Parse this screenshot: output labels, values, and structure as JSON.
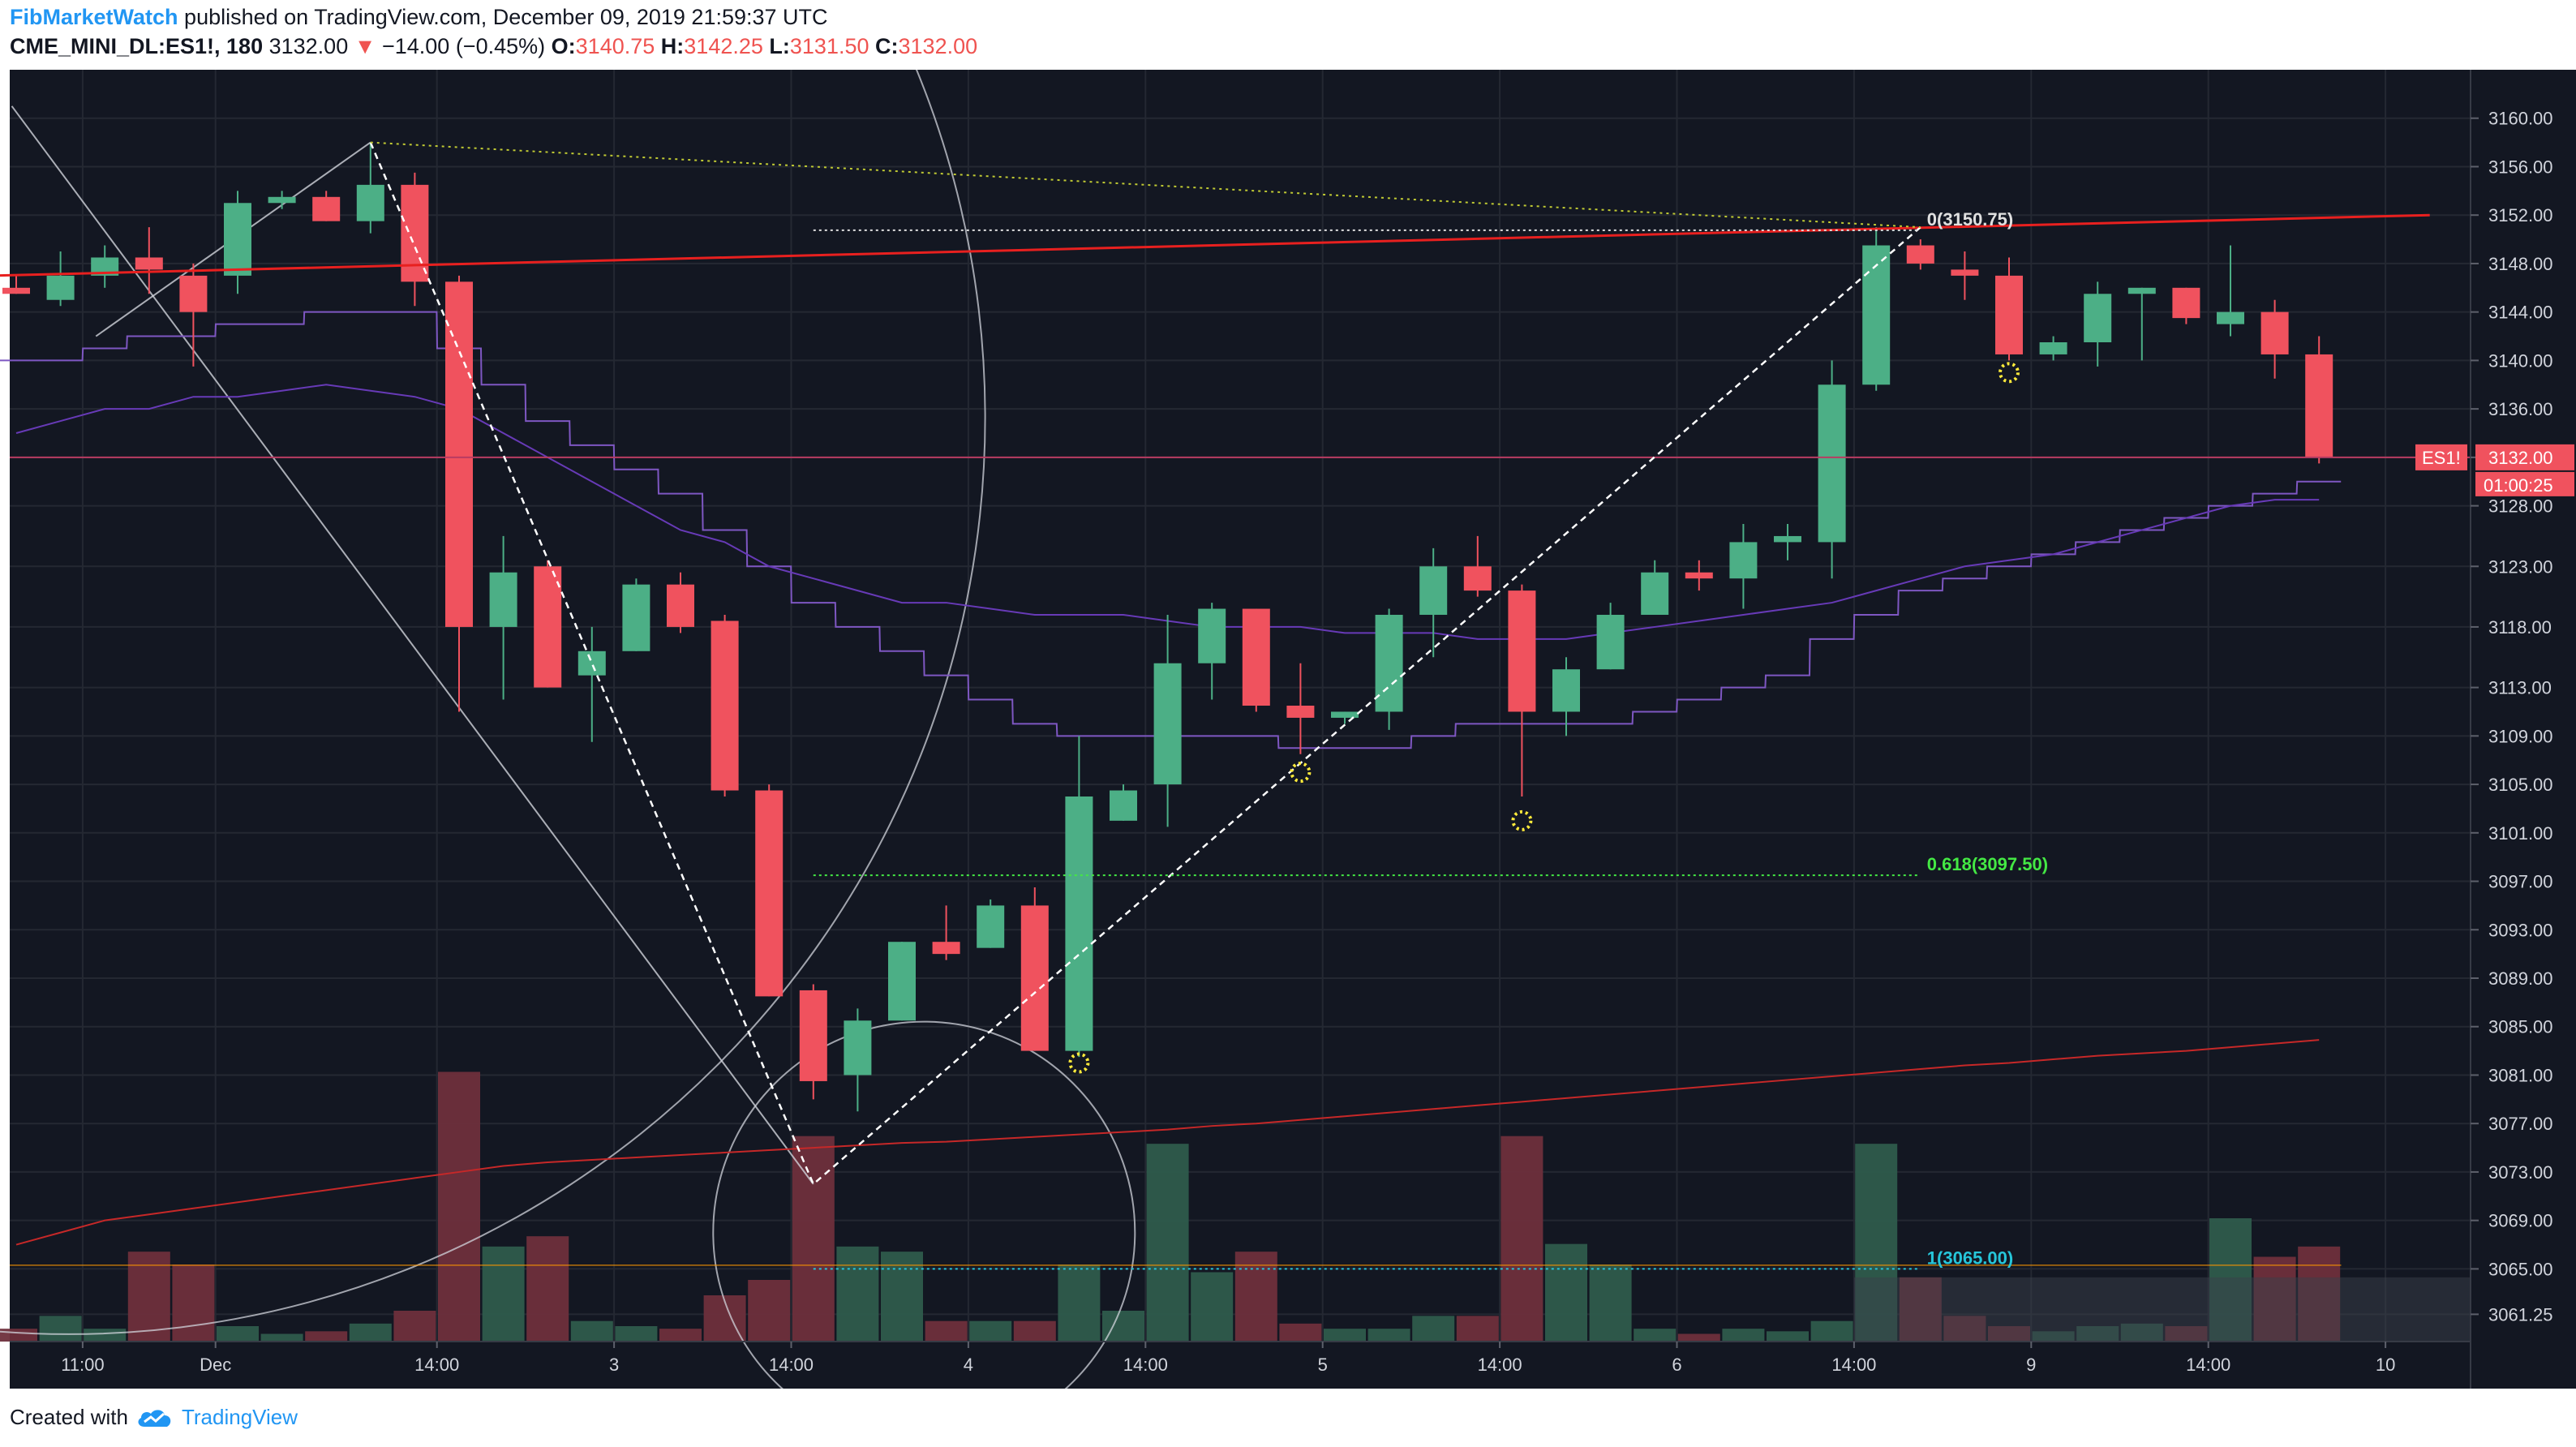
{
  "header": {
    "author": "FibMarketWatch",
    "published_text": "published on TradingView.com, December 09, 2019 21:59:37 UTC",
    "symbol": "CME_MINI_DL:ES1!, 180",
    "last": "3132.00",
    "change": "−14.00 (−0.45%)",
    "o_label": "O:",
    "o_val": "3140.75",
    "h_label": "H:",
    "h_val": "3142.25",
    "l_label": "L:",
    "l_val": "3131.50",
    "c_label": "C:",
    "c_val": "3132.00"
  },
  "footer": {
    "created_with": "Created with",
    "brand": "TradingView"
  },
  "colors": {
    "up": "#4caf86",
    "down": "#f0525e",
    "bg": "#131722",
    "grid": "#242832",
    "axis_text": "#d1d4dc",
    "resistance": "#e8201f",
    "fib_green": "#44e844",
    "fib_cyan": "#26c6da"
  },
  "chart_data": {
    "type": "candlestick",
    "symbol": "ES1!",
    "interval": "180",
    "ylim": [
      3059,
      3164
    ],
    "y_ticks": [
      3061.25,
      3065.0,
      3069.0,
      3073.0,
      3077.0,
      3081.0,
      3085.0,
      3089.0,
      3093.0,
      3097.0,
      3101.0,
      3105.0,
      3109.0,
      3113.0,
      3118.0,
      3123.0,
      3128.0,
      3132.0,
      3136.0,
      3140.0,
      3144.0,
      3148.0,
      3152.0,
      3156.0,
      3160.0
    ],
    "x_labels": [
      {
        "i": 1.5,
        "label": "11:00"
      },
      {
        "i": 4.5,
        "label": "Dec"
      },
      {
        "i": 9.5,
        "label": "14:00"
      },
      {
        "i": 13.5,
        "label": "3"
      },
      {
        "i": 17.5,
        "label": "14:00"
      },
      {
        "i": 21.5,
        "label": "4"
      },
      {
        "i": 25.5,
        "label": "14:00"
      },
      {
        "i": 29.5,
        "label": "5"
      },
      {
        "i": 33.5,
        "label": "14:00"
      },
      {
        "i": 37.5,
        "label": "6"
      },
      {
        "i": 41.5,
        "label": "14:00"
      },
      {
        "i": 45.5,
        "label": "9"
      },
      {
        "i": 49.5,
        "label": "14:00"
      },
      {
        "i": 53.5,
        "label": "10"
      }
    ],
    "candles": [
      {
        "o": 3146.0,
        "h": 3147.0,
        "l": 3145.5,
        "c": 3145.5,
        "v": 5
      },
      {
        "o": 3145.0,
        "h": 3149.0,
        "l": 3144.5,
        "c": 3147.0,
        "v": 10
      },
      {
        "o": 3147.0,
        "h": 3149.5,
        "l": 3146.0,
        "c": 3148.5,
        "v": 5
      },
      {
        "o": 3148.5,
        "h": 3151.0,
        "l": 3145.5,
        "c": 3147.5,
        "v": 35
      },
      {
        "o": 3147.0,
        "h": 3148.0,
        "l": 3139.5,
        "c": 3144.0,
        "v": 30
      },
      {
        "o": 3147.0,
        "h": 3154.0,
        "l": 3145.5,
        "c": 3153.0,
        "v": 6
      },
      {
        "o": 3153.0,
        "h": 3154.0,
        "l": 3152.5,
        "c": 3153.5,
        "v": 3
      },
      {
        "o": 3153.5,
        "h": 3154.0,
        "l": 3151.5,
        "c": 3151.5,
        "v": 4
      },
      {
        "o": 3151.5,
        "h": 3158.0,
        "l": 3150.5,
        "c": 3154.5,
        "v": 7
      },
      {
        "o": 3154.5,
        "h": 3155.5,
        "l": 3144.5,
        "c": 3146.5,
        "v": 12
      },
      {
        "o": 3146.5,
        "h": 3147.0,
        "l": 3111.0,
        "c": 3118.0,
        "v": 105
      },
      {
        "o": 3118.0,
        "h": 3125.5,
        "l": 3112.0,
        "c": 3122.5,
        "v": 37
      },
      {
        "o": 3123.0,
        "h": 3123.5,
        "l": 3113.0,
        "c": 3113.0,
        "v": 41
      },
      {
        "o": 3114.0,
        "h": 3118.0,
        "l": 3108.5,
        "c": 3116.0,
        "v": 8
      },
      {
        "o": 3116.0,
        "h": 3122.0,
        "l": 3116.0,
        "c": 3121.5,
        "v": 6
      },
      {
        "o": 3121.5,
        "h": 3122.5,
        "l": 3117.5,
        "c": 3118.0,
        "v": 5
      },
      {
        "o": 3118.5,
        "h": 3119.0,
        "l": 3104.0,
        "c": 3104.5,
        "v": 18
      },
      {
        "o": 3104.5,
        "h": 3105.0,
        "l": 3087.5,
        "c": 3087.5,
        "v": 24
      },
      {
        "o": 3088.0,
        "h": 3088.5,
        "l": 3079.0,
        "c": 3080.5,
        "v": 80
      },
      {
        "o": 3081.0,
        "h": 3086.5,
        "l": 3078.0,
        "c": 3085.5,
        "v": 37
      },
      {
        "o": 3085.5,
        "h": 3092.0,
        "l": 3085.5,
        "c": 3092.0,
        "v": 35
      },
      {
        "o": 3092.0,
        "h": 3095.0,
        "l": 3090.5,
        "c": 3091.0,
        "v": 8
      },
      {
        "o": 3091.5,
        "h": 3095.5,
        "l": 3091.5,
        "c": 3095.0,
        "v": 8
      },
      {
        "o": 3095.0,
        "h": 3096.5,
        "l": 3083.0,
        "c": 3083.0,
        "v": 8
      },
      {
        "o": 3083.0,
        "h": 3109.0,
        "l": 3082.5,
        "c": 3104.0,
        "v": 30
      },
      {
        "o": 3102.0,
        "h": 3105.0,
        "l": 3102.0,
        "c": 3104.5,
        "v": 12
      },
      {
        "o": 3105.0,
        "h": 3119.0,
        "l": 3101.5,
        "c": 3115.0,
        "v": 77
      },
      {
        "o": 3115.0,
        "h": 3120.0,
        "l": 3112.0,
        "c": 3119.5,
        "v": 27
      },
      {
        "o": 3119.5,
        "h": 3119.5,
        "l": 3111.0,
        "c": 3111.5,
        "v": 35
      },
      {
        "o": 3111.5,
        "h": 3115.0,
        "l": 3107.5,
        "c": 3110.5,
        "v": 7
      },
      {
        "o": 3110.5,
        "h": 3111.0,
        "l": 3110.0,
        "c": 3111.0,
        "v": 5
      },
      {
        "o": 3111.0,
        "h": 3119.5,
        "l": 3109.5,
        "c": 3119.0,
        "v": 5
      },
      {
        "o": 3119.0,
        "h": 3124.5,
        "l": 3115.5,
        "c": 3123.0,
        "v": 10
      },
      {
        "o": 3123.0,
        "h": 3125.5,
        "l": 3120.5,
        "c": 3121.0,
        "v": 10
      },
      {
        "o": 3121.0,
        "h": 3121.5,
        "l": 3104.0,
        "c": 3111.0,
        "v": 80
      },
      {
        "o": 3111.0,
        "h": 3115.5,
        "l": 3109.0,
        "c": 3114.5,
        "v": 38
      },
      {
        "o": 3114.5,
        "h": 3120.0,
        "l": 3114.5,
        "c": 3119.0,
        "v": 30
      },
      {
        "o": 3119.0,
        "h": 3123.5,
        "l": 3119.0,
        "c": 3122.5,
        "v": 5
      },
      {
        "o": 3122.5,
        "h": 3123.5,
        "l": 3121.0,
        "c": 3122.0,
        "v": 3
      },
      {
        "o": 3122.0,
        "h": 3126.5,
        "l": 3119.5,
        "c": 3125.0,
        "v": 5
      },
      {
        "o": 3125.0,
        "h": 3126.5,
        "l": 3123.5,
        "c": 3125.5,
        "v": 4
      },
      {
        "o": 3125.0,
        "h": 3140.0,
        "l": 3122.0,
        "c": 3138.0,
        "v": 8
      },
      {
        "o": 3138.0,
        "h": 3151.0,
        "l": 3137.5,
        "c": 3149.5,
        "v": 77
      },
      {
        "o": 3149.5,
        "h": 3150.0,
        "l": 3147.5,
        "c": 3148.0,
        "v": 25
      },
      {
        "o": 3147.5,
        "h": 3149.0,
        "l": 3145.0,
        "c": 3147.0,
        "v": 10
      },
      {
        "o": 3147.0,
        "h": 3148.5,
        "l": 3140.0,
        "c": 3140.5,
        "v": 6
      },
      {
        "o": 3140.5,
        "h": 3142.0,
        "l": 3140.0,
        "c": 3141.5,
        "v": 4
      },
      {
        "o": 3141.5,
        "h": 3146.5,
        "l": 3139.5,
        "c": 3145.5,
        "v": 6
      },
      {
        "o": 3145.5,
        "h": 3146.0,
        "l": 3140.0,
        "c": 3146.0,
        "v": 7
      },
      {
        "o": 3146.0,
        "h": 3146.0,
        "l": 3143.0,
        "c": 3143.5,
        "v": 6
      },
      {
        "o": 3143.0,
        "h": 3149.5,
        "l": 3142.0,
        "c": 3144.0,
        "v": 48
      },
      {
        "o": 3144.0,
        "h": 3145.0,
        "l": 3138.5,
        "c": 3140.5,
        "v": 33
      },
      {
        "o": 3140.5,
        "h": 3142.0,
        "l": 3131.5,
        "c": 3132.0,
        "v": 37
      }
    ],
    "volume_max": 120,
    "price_label": {
      "symbol": "ES1!",
      "value": "3132.00",
      "countdown": "01:00:25"
    },
    "fib_retracement": [
      {
        "ratio": "0",
        "label": "0(3150.75)",
        "price": 3150.75
      },
      {
        "ratio": "0.618",
        "label": "0.618(3097.50)",
        "price": 3097.5
      },
      {
        "ratio": "1",
        "label": "1(3065.00)",
        "price": 3065.0
      }
    ],
    "resistance_line": {
      "from": {
        "i": -0.5,
        "p": 3147.0
      },
      "to": {
        "i": 54.5,
        "p": 3152.0
      }
    },
    "zigzag": [
      {
        "i": 8,
        "p": 3158.0
      },
      {
        "i": 18,
        "p": 3072.0
      },
      {
        "i": 43,
        "p": 3151.0
      }
    ],
    "dotted_trend": {
      "from": {
        "i": 8,
        "p": 3158.0
      },
      "to": {
        "i": 43,
        "p": 3151.0
      }
    },
    "markers": [
      {
        "i": 24,
        "p": 3082.0
      },
      {
        "i": 29,
        "p": 3106.0
      },
      {
        "i": 34,
        "p": 3102.0
      },
      {
        "i": 45,
        "p": 3139.0
      }
    ],
    "ma_step": [
      3140,
      3140,
      3141,
      3142,
      3142,
      3143,
      3143,
      3144,
      3144,
      3144,
      3141,
      3138,
      3135,
      3133,
      3131,
      3129,
      3126,
      3123,
      3120,
      3118,
      3116,
      3114,
      3112,
      3110,
      3109,
      3109,
      3109,
      3109,
      3109,
      3108,
      3108,
      3108,
      3109,
      3110,
      3110,
      3110,
      3110,
      3111,
      3112,
      3113,
      3114,
      3117,
      3119,
      3121,
      3122,
      3123,
      3124,
      3125,
      3126,
      3127,
      3128,
      3129,
      3130
    ],
    "ma_smooth": [
      3134,
      3135,
      3136,
      3136,
      3137,
      3137,
      3137.5,
      3138,
      3137.5,
      3137,
      3136,
      3134,
      3132,
      3130,
      3128,
      3126,
      3125,
      3123,
      3122,
      3121,
      3120,
      3120,
      3119.5,
      3119,
      3119,
      3119,
      3118.5,
      3118,
      3118,
      3118,
      3117.5,
      3117.5,
      3117.5,
      3117,
      3117,
      3117,
      3117.5,
      3118,
      3118.5,
      3119,
      3119.5,
      3120,
      3121,
      3122,
      3123,
      3123.5,
      3124,
      3125,
      3126,
      3127,
      3128,
      3128.5,
      3128.5
    ],
    "ma_long": [
      3067,
      3068,
      3069,
      3069.5,
      3070,
      3070.5,
      3071,
      3071.5,
      3072,
      3072.5,
      3073,
      3073.5,
      3073.8,
      3074,
      3074.2,
      3074.4,
      3074.6,
      3074.8,
      3075,
      3075.2,
      3075.4,
      3075.5,
      3075.7,
      3075.9,
      3076.1,
      3076.3,
      3076.5,
      3076.8,
      3077,
      3077.3,
      3077.6,
      3077.9,
      3078.2,
      3078.5,
      3078.8,
      3079.1,
      3079.4,
      3079.7,
      3080,
      3080.3,
      3080.6,
      3080.9,
      3081.2,
      3081.5,
      3081.8,
      3082,
      3082.3,
      3082.6,
      3082.8,
      3083,
      3083.3,
      3083.6,
      3083.9
    ]
  }
}
